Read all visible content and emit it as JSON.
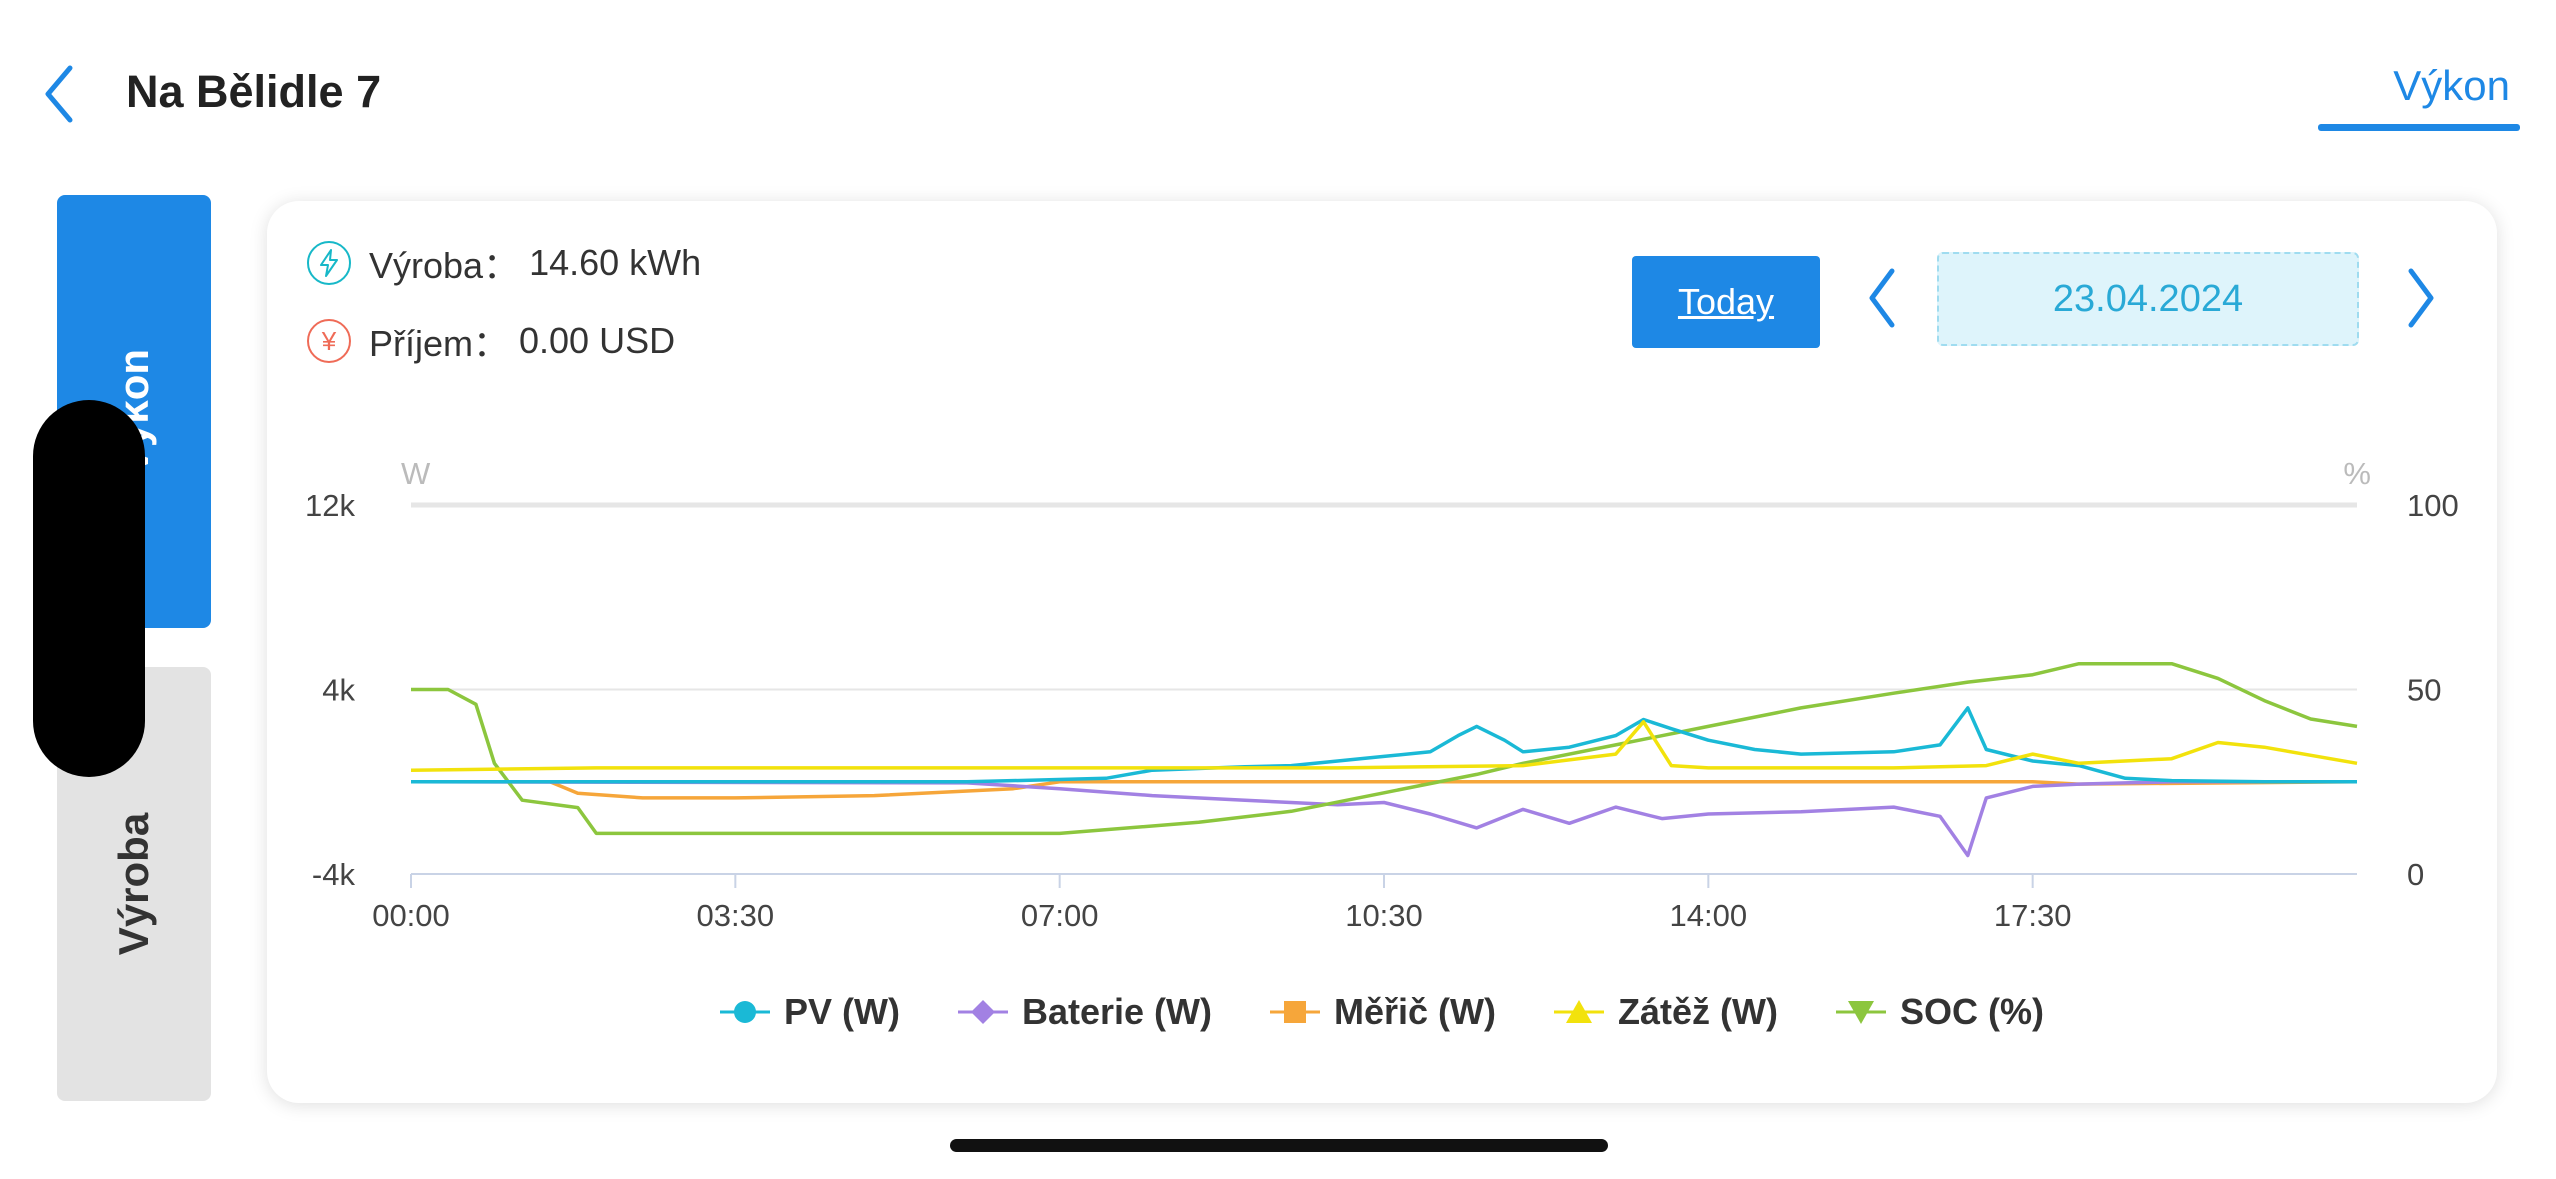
{
  "header": {
    "title": "Na Bělidle 7",
    "tab_label": "Výkon",
    "back_icon": "chevron-left-icon"
  },
  "side_tabs": [
    {
      "label": "Výkon",
      "active": true
    },
    {
      "label": "Výroba",
      "active": false
    }
  ],
  "stats": {
    "production_label": "Výroba：",
    "production_value": "14.60 kWh",
    "income_label": "Příjem：",
    "income_value": "0.00 USD"
  },
  "date_nav": {
    "today_label": "Today",
    "date": "23.04.2024"
  },
  "colors": {
    "accent": "#1e88e5",
    "pv": "#1ab9d6",
    "battery": "#a281e3",
    "meter": "#f6a63a",
    "load": "#f2e20c",
    "soc": "#8cc63e"
  },
  "chart_data": {
    "type": "line",
    "x_ticks": [
      "00:00",
      "03:30",
      "07:00",
      "10:30",
      "14:00",
      "17:30"
    ],
    "x_range_hours": [
      0,
      21
    ],
    "y_left": {
      "unit": "W",
      "ticks": [
        "12k",
        "4k",
        "-4k"
      ],
      "range": [
        -4000,
        12000
      ]
    },
    "y_right": {
      "unit": "%",
      "ticks": [
        "100",
        "50",
        "0"
      ],
      "range": [
        0,
        100
      ]
    },
    "grid": "horizontal",
    "legend_position": "bottom",
    "series": [
      {
        "name": "PV (W)",
        "axis": "left",
        "points": [
          [
            0,
            0
          ],
          [
            6,
            0
          ],
          [
            7.5,
            150
          ],
          [
            8,
            500
          ],
          [
            9,
            650
          ],
          [
            9.5,
            700
          ],
          [
            10,
            900
          ],
          [
            10.5,
            1100
          ],
          [
            11,
            1300
          ],
          [
            11.3,
            2000
          ],
          [
            11.5,
            2400
          ],
          [
            11.8,
            1800
          ],
          [
            12,
            1300
          ],
          [
            12.5,
            1500
          ],
          [
            13,
            2000
          ],
          [
            13.3,
            2700
          ],
          [
            13.6,
            2300
          ],
          [
            14,
            1800
          ],
          [
            14.5,
            1400
          ],
          [
            15,
            1200
          ],
          [
            16,
            1300
          ],
          [
            16.5,
            1600
          ],
          [
            16.8,
            3200
          ],
          [
            17,
            1400
          ],
          [
            17.5,
            900
          ],
          [
            18,
            700
          ],
          [
            18.5,
            150
          ],
          [
            19,
            50
          ],
          [
            20,
            0
          ],
          [
            21,
            0
          ]
        ]
      },
      {
        "name": "Baterie (W)",
        "axis": "left",
        "points": [
          [
            0,
            0
          ],
          [
            6,
            -50
          ],
          [
            7,
            -300
          ],
          [
            8,
            -600
          ],
          [
            9,
            -800
          ],
          [
            10,
            -1000
          ],
          [
            10.5,
            -900
          ],
          [
            11,
            -1400
          ],
          [
            11.5,
            -2000
          ],
          [
            12,
            -1200
          ],
          [
            12.5,
            -1800
          ],
          [
            13,
            -1100
          ],
          [
            13.5,
            -1600
          ],
          [
            14,
            -1400
          ],
          [
            15,
            -1300
          ],
          [
            16,
            -1100
          ],
          [
            16.5,
            -1500
          ],
          [
            16.8,
            -3200
          ],
          [
            17,
            -700
          ],
          [
            17.5,
            -200
          ],
          [
            18,
            -100
          ],
          [
            18.5,
            -50
          ],
          [
            19,
            0
          ],
          [
            21,
            0
          ]
        ]
      },
      {
        "name": "Měřič (W)",
        "axis": "left",
        "points": [
          [
            0,
            0
          ],
          [
            1.5,
            0
          ],
          [
            1.8,
            -500
          ],
          [
            2.5,
            -700
          ],
          [
            3.5,
            -700
          ],
          [
            5,
            -600
          ],
          [
            6.5,
            -300
          ],
          [
            7,
            0
          ],
          [
            17.5,
            0
          ],
          [
            18,
            -100
          ],
          [
            21,
            0
          ]
        ]
      },
      {
        "name": "Zátěž (W)",
        "axis": "left",
        "points": [
          [
            0,
            500
          ],
          [
            2,
            600
          ],
          [
            4,
            600
          ],
          [
            6,
            600
          ],
          [
            8,
            600
          ],
          [
            10,
            600
          ],
          [
            12,
            700
          ],
          [
            13,
            1200
          ],
          [
            13.3,
            2600
          ],
          [
            13.6,
            700
          ],
          [
            14,
            600
          ],
          [
            16,
            600
          ],
          [
            17,
            700
          ],
          [
            17.5,
            1200
          ],
          [
            18,
            800
          ],
          [
            19,
            1000
          ],
          [
            19.5,
            1700
          ],
          [
            20,
            1500
          ],
          [
            21,
            800
          ]
        ]
      },
      {
        "name": "SOC (%)",
        "axis": "right",
        "points": [
          [
            0,
            50
          ],
          [
            0.4,
            50
          ],
          [
            0.7,
            46
          ],
          [
            0.9,
            30
          ],
          [
            1.2,
            20
          ],
          [
            1.8,
            18
          ],
          [
            2,
            11
          ],
          [
            7,
            11
          ],
          [
            8.5,
            14
          ],
          [
            9.5,
            17
          ],
          [
            10.5,
            22
          ],
          [
            11.5,
            27
          ],
          [
            12,
            30
          ],
          [
            13,
            35
          ],
          [
            14,
            40
          ],
          [
            15,
            45
          ],
          [
            16,
            49
          ],
          [
            16.8,
            52
          ],
          [
            17.5,
            54
          ],
          [
            18,
            57
          ],
          [
            19,
            57
          ],
          [
            19.5,
            53
          ],
          [
            20,
            47
          ],
          [
            20.5,
            42
          ],
          [
            21,
            40
          ]
        ]
      }
    ]
  }
}
